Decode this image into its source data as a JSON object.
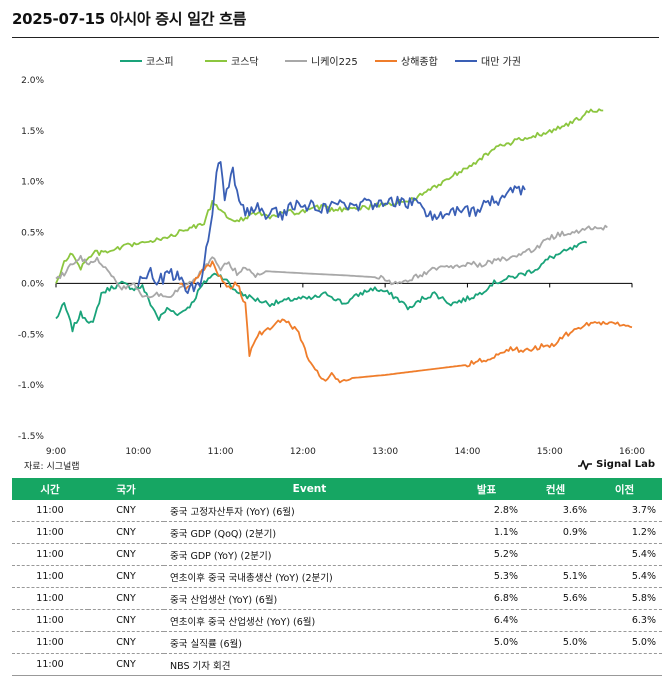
{
  "header": {
    "title": "2025-07-15 아시아 증시 일간 흐름"
  },
  "footer": {
    "source": "자료: 시그널랩",
    "brand": "Signal Lab"
  },
  "chart_data": {
    "type": "line",
    "title": "",
    "xlabel": "",
    "ylabel": "",
    "x_ticks": [
      "9:00",
      "10:00",
      "11:00",
      "12:00",
      "13:00",
      "14:00",
      "15:00",
      "16:00"
    ],
    "y_ticks": [
      "2.0%",
      "1.5%",
      "1.0%",
      "0.5%",
      "0.0%",
      "-0.5%",
      "-1.0%",
      "-1.5%"
    ],
    "ylim": [
      -1.5,
      2.0
    ],
    "xlim": [
      9.0,
      16.0
    ],
    "grid": false,
    "legend_position": "top",
    "series": [
      {
        "name": "코스피",
        "color": "#1aa37a",
        "points": [
          [
            9.0,
            -0.35
          ],
          [
            9.1,
            -0.2
          ],
          [
            9.2,
            -0.45
          ],
          [
            9.3,
            -0.3
          ],
          [
            9.45,
            -0.4
          ],
          [
            9.55,
            -0.1
          ],
          [
            9.65,
            -0.05
          ],
          [
            9.8,
            0.0
          ],
          [
            9.95,
            -0.05
          ],
          [
            10.05,
            -0.03
          ],
          [
            10.15,
            -0.2
          ],
          [
            10.25,
            -0.35
          ],
          [
            10.35,
            -0.25
          ],
          [
            10.5,
            -0.3
          ],
          [
            10.65,
            -0.2
          ],
          [
            10.75,
            -0.05
          ],
          [
            10.85,
            0.05
          ],
          [
            10.95,
            0.1
          ],
          [
            11.05,
            0.05
          ],
          [
            11.15,
            -0.05
          ],
          [
            11.25,
            -0.1
          ],
          [
            11.4,
            -0.15
          ],
          [
            11.6,
            -0.2
          ],
          [
            11.75,
            -0.18
          ],
          [
            11.9,
            -0.15
          ],
          [
            12.1,
            -0.15
          ],
          [
            12.3,
            -0.1
          ],
          [
            12.5,
            -0.2
          ],
          [
            12.7,
            -0.1
          ],
          [
            12.85,
            -0.05
          ],
          [
            13.0,
            -0.08
          ],
          [
            13.15,
            -0.15
          ],
          [
            13.3,
            -0.25
          ],
          [
            13.45,
            -0.15
          ],
          [
            13.6,
            -0.1
          ],
          [
            13.8,
            -0.2
          ],
          [
            14.0,
            -0.15
          ],
          [
            14.15,
            -0.1
          ],
          [
            14.3,
            0.0
          ],
          [
            14.5,
            0.05
          ],
          [
            14.7,
            0.1
          ],
          [
            14.85,
            0.15
          ],
          [
            15.0,
            0.25
          ],
          [
            15.15,
            0.3
          ],
          [
            15.3,
            0.35
          ],
          [
            15.45,
            0.4
          ]
        ]
      },
      {
        "name": "코스닥",
        "color": "#8cc63f",
        "points": [
          [
            9.0,
            0.0
          ],
          [
            9.1,
            0.2
          ],
          [
            9.2,
            0.3
          ],
          [
            9.3,
            0.15
          ],
          [
            9.45,
            0.3
          ],
          [
            9.6,
            0.3
          ],
          [
            9.8,
            0.35
          ],
          [
            10.0,
            0.4
          ],
          [
            10.15,
            0.4
          ],
          [
            10.3,
            0.45
          ],
          [
            10.5,
            0.5
          ],
          [
            10.65,
            0.55
          ],
          [
            10.8,
            0.6
          ],
          [
            10.9,
            0.8
          ],
          [
            11.0,
            0.7
          ],
          [
            11.2,
            0.6
          ],
          [
            11.4,
            0.7
          ],
          [
            11.6,
            0.65
          ],
          [
            11.8,
            0.7
          ],
          [
            12.0,
            0.7
          ],
          [
            12.2,
            0.75
          ],
          [
            12.4,
            0.72
          ],
          [
            12.6,
            0.75
          ],
          [
            12.8,
            0.75
          ],
          [
            13.0,
            0.78
          ],
          [
            13.2,
            0.8
          ],
          [
            13.4,
            0.85
          ],
          [
            13.6,
            0.95
          ],
          [
            13.8,
            1.05
          ],
          [
            14.0,
            1.15
          ],
          [
            14.2,
            1.25
          ],
          [
            14.4,
            1.35
          ],
          [
            14.6,
            1.4
          ],
          [
            14.8,
            1.45
          ],
          [
            15.0,
            1.5
          ],
          [
            15.2,
            1.55
          ],
          [
            15.35,
            1.62
          ],
          [
            15.5,
            1.7
          ],
          [
            15.65,
            1.7
          ]
        ]
      },
      {
        "name": "니케이225",
        "color": "#a8a8a8",
        "points": [
          [
            9.0,
            0.05
          ],
          [
            9.1,
            0.1
          ],
          [
            9.2,
            0.2
          ],
          [
            9.3,
            0.25
          ],
          [
            9.4,
            0.2
          ],
          [
            9.5,
            0.25
          ],
          [
            9.6,
            0.15
          ],
          [
            9.7,
            0.05
          ],
          [
            9.8,
            -0.05
          ],
          [
            9.95,
            0.0
          ],
          [
            10.05,
            -0.15
          ],
          [
            10.2,
            -0.1
          ],
          [
            10.35,
            -0.15
          ],
          [
            10.5,
            -0.05
          ],
          [
            10.65,
            0.0
          ],
          [
            10.8,
            0.15
          ],
          [
            10.9,
            0.25
          ],
          [
            11.0,
            0.15
          ],
          [
            11.1,
            0.2
          ],
          [
            11.2,
            0.1
          ],
          [
            11.3,
            0.15
          ],
          [
            11.4,
            0.08
          ],
          [
            11.55,
            0.12
          ],
          [
            12.0,
            0.1
          ],
          [
            12.5,
            0.08
          ],
          [
            12.9,
            0.06
          ],
          [
            13.0,
            0.05
          ],
          [
            13.1,
            0.0
          ],
          [
            13.25,
            0.02
          ],
          [
            13.4,
            0.08
          ],
          [
            13.55,
            0.12
          ],
          [
            13.7,
            0.18
          ],
          [
            13.85,
            0.15
          ],
          [
            14.0,
            0.2
          ],
          [
            14.15,
            0.18
          ],
          [
            14.35,
            0.22
          ],
          [
            14.5,
            0.25
          ],
          [
            14.7,
            0.3
          ],
          [
            14.85,
            0.35
          ],
          [
            15.0,
            0.45
          ],
          [
            15.2,
            0.5
          ],
          [
            15.35,
            0.5
          ],
          [
            15.5,
            0.55
          ],
          [
            15.7,
            0.55
          ]
        ]
      },
      {
        "name": "상해종합",
        "color": "#ef7d2b",
        "points": [
          [
            10.5,
            0.0
          ],
          [
            10.6,
            -0.05
          ],
          [
            10.7,
            0.05
          ],
          [
            10.8,
            0.15
          ],
          [
            10.9,
            0.2
          ],
          [
            11.0,
            0.05
          ],
          [
            11.1,
            -0.05
          ],
          [
            11.2,
            0.0
          ],
          [
            11.3,
            -0.2
          ],
          [
            11.35,
            -0.7
          ],
          [
            11.45,
            -0.5
          ],
          [
            11.6,
            -0.45
          ],
          [
            11.75,
            -0.35
          ],
          [
            11.85,
            -0.4
          ],
          [
            11.95,
            -0.5
          ],
          [
            12.05,
            -0.7
          ],
          [
            12.15,
            -0.85
          ],
          [
            12.25,
            -0.95
          ],
          [
            12.35,
            -0.9
          ],
          [
            12.45,
            -0.95
          ],
          [
            12.6,
            -0.93
          ],
          [
            13.0,
            -0.9
          ],
          [
            13.5,
            -0.85
          ],
          [
            14.0,
            -0.8
          ],
          [
            14.2,
            -0.75
          ],
          [
            14.35,
            -0.7
          ],
          [
            14.5,
            -0.65
          ],
          [
            14.7,
            -0.65
          ],
          [
            14.9,
            -0.62
          ],
          [
            15.05,
            -0.6
          ],
          [
            15.2,
            -0.5
          ],
          [
            15.35,
            -0.45
          ],
          [
            15.5,
            -0.38
          ],
          [
            15.65,
            -0.4
          ],
          [
            15.8,
            -0.38
          ],
          [
            16.0,
            -0.43
          ]
        ]
      },
      {
        "name": "대만 가권",
        "color": "#3a5fb5",
        "points": [
          [
            10.0,
            0.0
          ],
          [
            10.1,
            0.1
          ],
          [
            10.15,
            0.2
          ],
          [
            10.2,
            0.0
          ],
          [
            10.3,
            0.05
          ],
          [
            10.45,
            0.1
          ],
          [
            10.6,
            -0.05
          ],
          [
            10.75,
            0.0
          ],
          [
            10.85,
            0.4
          ],
          [
            10.95,
            1.05
          ],
          [
            11.0,
            1.2
          ],
          [
            11.05,
            0.85
          ],
          [
            11.15,
            1.1
          ],
          [
            11.25,
            0.75
          ],
          [
            11.35,
            0.7
          ],
          [
            11.45,
            0.8
          ],
          [
            11.55,
            0.65
          ],
          [
            11.65,
            0.75
          ],
          [
            11.75,
            0.65
          ],
          [
            11.85,
            0.8
          ],
          [
            12.0,
            0.72
          ],
          [
            12.15,
            0.78
          ],
          [
            12.3,
            0.72
          ],
          [
            12.45,
            0.8
          ],
          [
            12.6,
            0.75
          ],
          [
            12.75,
            0.8
          ],
          [
            12.9,
            0.75
          ],
          [
            13.05,
            0.82
          ],
          [
            13.2,
            0.78
          ],
          [
            13.4,
            0.8
          ],
          [
            13.5,
            0.7
          ],
          [
            13.7,
            0.65
          ],
          [
            13.9,
            0.72
          ],
          [
            14.1,
            0.7
          ],
          [
            14.25,
            0.82
          ],
          [
            14.4,
            0.8
          ],
          [
            14.55,
            0.9
          ],
          [
            14.7,
            0.92
          ]
        ]
      }
    ]
  },
  "table": {
    "headers": [
      "시간",
      "국가",
      "Event",
      "발표",
      "컨센",
      "이전"
    ],
    "rows": [
      [
        "11:00",
        "CNY",
        "중국 고정자산투자 (YoY) (6월)",
        "2.8%",
        "3.6%",
        "3.7%"
      ],
      [
        "11:00",
        "CNY",
        "중국 GDP (QoQ) (2분기)",
        "1.1%",
        "0.9%",
        "1.2%"
      ],
      [
        "11:00",
        "CNY",
        "중국 GDP (YoY) (2분기)",
        "5.2%",
        "",
        "5.4%"
      ],
      [
        "11:00",
        "CNY",
        "연초이후 중국 국내총생산 (YoY) (2분기)",
        "5.3%",
        "5.1%",
        "5.4%"
      ],
      [
        "11:00",
        "CNY",
        "중국 산업생산 (YoY) (6월)",
        "6.8%",
        "5.6%",
        "5.8%"
      ],
      [
        "11:00",
        "CNY",
        "연초이후 중국 산업생산 (YoY) (6월)",
        "6.4%",
        "",
        "6.3%"
      ],
      [
        "11:00",
        "CNY",
        "중국 실직률 (6월)",
        "5.0%",
        "5.0%",
        "5.0%"
      ],
      [
        "11:00",
        "CNY",
        "NBS 기자 회견",
        "",
        "",
        ""
      ]
    ]
  }
}
